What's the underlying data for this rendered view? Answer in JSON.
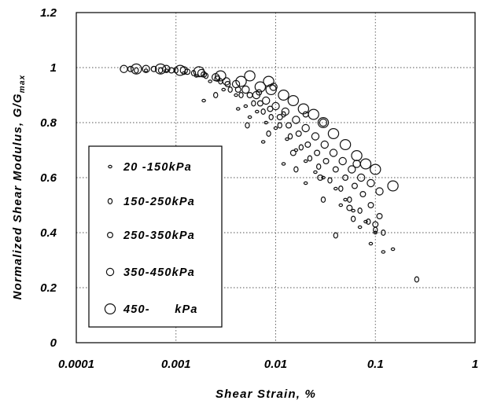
{
  "chart_data": {
    "type": "scatter",
    "xlabel": "Shear Strain, %",
    "ylabel": "Normalized Shear Modulus, G/G",
    "ylabel_subscript": "max",
    "xscale": "log",
    "xlim": [
      0.0001,
      1
    ],
    "ylim": [
      0,
      1.2
    ],
    "grid": true,
    "x_ticks": [
      "0.0001",
      "0.001",
      "0.01",
      "0.1",
      "1"
    ],
    "y_ticks": [
      "0",
      "0.2",
      "0.4",
      "0.6",
      "0.8",
      "1",
      "1.2"
    ],
    "legend_placement": "lower-left",
    "series": [
      {
        "name": "20 -150kPa",
        "marker": "small-ellipse",
        "points": [
          [
            0.0005,
            0.99
          ],
          [
            0.0008,
            0.99
          ],
          [
            0.0012,
            0.98
          ],
          [
            0.0016,
            0.97
          ],
          [
            0.0022,
            0.95
          ],
          [
            0.003,
            0.92
          ],
          [
            0.004,
            0.9
          ],
          [
            0.005,
            0.86
          ],
          [
            0.0065,
            0.84
          ],
          [
            0.008,
            0.8
          ],
          [
            0.01,
            0.78
          ],
          [
            0.013,
            0.74
          ],
          [
            0.016,
            0.7
          ],
          [
            0.02,
            0.66
          ],
          [
            0.025,
            0.62
          ],
          [
            0.03,
            0.6
          ],
          [
            0.04,
            0.56
          ],
          [
            0.05,
            0.52
          ],
          [
            0.06,
            0.48
          ],
          [
            0.08,
            0.44
          ],
          [
            0.1,
            0.4
          ],
          [
            0.12,
            0.33
          ],
          [
            0.15,
            0.34
          ],
          [
            0.0019,
            0.88
          ],
          [
            0.0042,
            0.85
          ],
          [
            0.0075,
            0.73
          ],
          [
            0.012,
            0.65
          ],
          [
            0.02,
            0.58
          ],
          [
            0.045,
            0.5
          ],
          [
            0.07,
            0.42
          ],
          [
            0.09,
            0.36
          ],
          [
            0.0055,
            0.82
          ]
        ]
      },
      {
        "name": "150-250kPa",
        "marker": "ellipse",
        "points": [
          [
            0.0004,
            0.99
          ],
          [
            0.0007,
            0.99
          ],
          [
            0.001,
            0.99
          ],
          [
            0.0015,
            0.98
          ],
          [
            0.002,
            0.97
          ],
          [
            0.0028,
            0.95
          ],
          [
            0.0035,
            0.92
          ],
          [
            0.0045,
            0.9
          ],
          [
            0.006,
            0.87
          ],
          [
            0.0075,
            0.84
          ],
          [
            0.009,
            0.82
          ],
          [
            0.011,
            0.79
          ],
          [
            0.014,
            0.75
          ],
          [
            0.018,
            0.71
          ],
          [
            0.022,
            0.67
          ],
          [
            0.027,
            0.64
          ],
          [
            0.035,
            0.59
          ],
          [
            0.045,
            0.56
          ],
          [
            0.055,
            0.52
          ],
          [
            0.07,
            0.48
          ],
          [
            0.085,
            0.44
          ],
          [
            0.1,
            0.41
          ],
          [
            0.12,
            0.4
          ],
          [
            0.26,
            0.23
          ],
          [
            0.0025,
            0.9
          ],
          [
            0.0052,
            0.79
          ],
          [
            0.0085,
            0.76
          ],
          [
            0.016,
            0.63
          ],
          [
            0.03,
            0.52
          ],
          [
            0.06,
            0.45
          ],
          [
            0.04,
            0.39
          ],
          [
            0.012,
            0.83
          ]
        ]
      },
      {
        "name": "250-350kPa",
        "marker": "ellipse",
        "points": [
          [
            0.00035,
            0.995
          ],
          [
            0.0006,
            0.995
          ],
          [
            0.0009,
            0.99
          ],
          [
            0.0013,
            0.985
          ],
          [
            0.0019,
            0.975
          ],
          [
            0.0026,
            0.96
          ],
          [
            0.0033,
            0.94
          ],
          [
            0.0042,
            0.92
          ],
          [
            0.0055,
            0.9
          ],
          [
            0.007,
            0.87
          ],
          [
            0.0088,
            0.85
          ],
          [
            0.011,
            0.82
          ],
          [
            0.0135,
            0.79
          ],
          [
            0.017,
            0.76
          ],
          [
            0.021,
            0.72
          ],
          [
            0.026,
            0.69
          ],
          [
            0.032,
            0.66
          ],
          [
            0.04,
            0.63
          ],
          [
            0.05,
            0.6
          ],
          [
            0.062,
            0.57
          ],
          [
            0.075,
            0.54
          ],
          [
            0.09,
            0.5
          ],
          [
            0.11,
            0.46
          ],
          [
            0.0068,
            0.91
          ],
          [
            0.015,
            0.69
          ],
          [
            0.028,
            0.6
          ],
          [
            0.055,
            0.49
          ],
          [
            0.1,
            0.43
          ],
          [
            0.02,
            0.83
          ]
        ]
      },
      {
        "name": "350-450kPa",
        "marker": "circle",
        "points": [
          [
            0.0003,
            0.995
          ],
          [
            0.0005,
            0.995
          ],
          [
            0.0008,
            0.995
          ],
          [
            0.0012,
            0.99
          ],
          [
            0.0018,
            0.98
          ],
          [
            0.0025,
            0.965
          ],
          [
            0.0032,
            0.95
          ],
          [
            0.004,
            0.94
          ],
          [
            0.005,
            0.92
          ],
          [
            0.0064,
            0.9
          ],
          [
            0.008,
            0.88
          ],
          [
            0.01,
            0.86
          ],
          [
            0.0125,
            0.84
          ],
          [
            0.016,
            0.81
          ],
          [
            0.02,
            0.78
          ],
          [
            0.025,
            0.75
          ],
          [
            0.031,
            0.72
          ],
          [
            0.038,
            0.69
          ],
          [
            0.047,
            0.66
          ],
          [
            0.058,
            0.63
          ],
          [
            0.072,
            0.6
          ],
          [
            0.09,
            0.58
          ],
          [
            0.11,
            0.55
          ],
          [
            0.0095,
            0.93
          ],
          [
            0.03,
            0.8
          ],
          [
            0.065,
            0.65
          ]
        ]
      },
      {
        "name": "450-      kPa",
        "marker": "large-circle",
        "points": [
          [
            0.0004,
            0.995
          ],
          [
            0.0007,
            0.995
          ],
          [
            0.0011,
            0.99
          ],
          [
            0.0017,
            0.985
          ],
          [
            0.0028,
            0.97
          ],
          [
            0.0045,
            0.95
          ],
          [
            0.007,
            0.93
          ],
          [
            0.009,
            0.92
          ],
          [
            0.012,
            0.9
          ],
          [
            0.015,
            0.88
          ],
          [
            0.019,
            0.85
          ],
          [
            0.024,
            0.83
          ],
          [
            0.03,
            0.8
          ],
          [
            0.038,
            0.76
          ],
          [
            0.05,
            0.72
          ],
          [
            0.065,
            0.68
          ],
          [
            0.08,
            0.65
          ],
          [
            0.1,
            0.63
          ],
          [
            0.15,
            0.57
          ],
          [
            0.0055,
            0.97
          ],
          [
            0.0085,
            0.95
          ]
        ]
      }
    ]
  }
}
